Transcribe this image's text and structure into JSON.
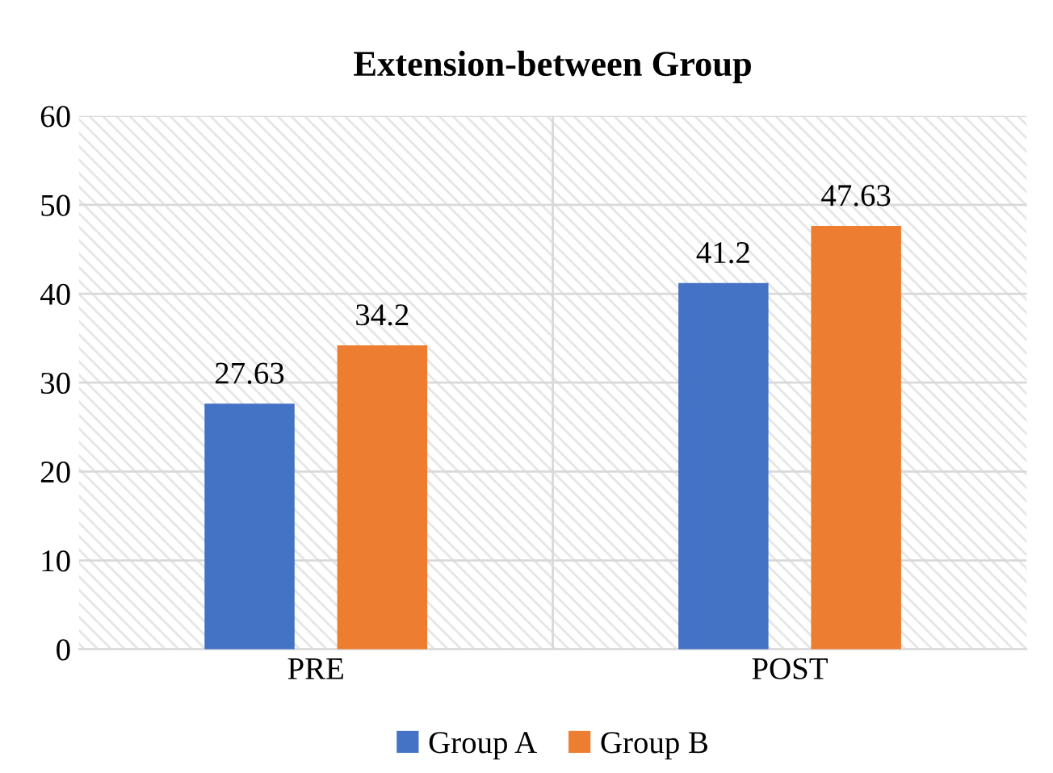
{
  "chart_data": {
    "type": "bar",
    "title": "Extension-between Group",
    "categories": [
      "PRE",
      "POST"
    ],
    "series": [
      {
        "name": "Group A",
        "color": "#4472c4",
        "values": [
          27.63,
          41.2
        ]
      },
      {
        "name": "Group B",
        "color": "#ed7d31",
        "values": [
          34.2,
          47.63
        ]
      }
    ],
    "ylim": [
      0,
      60
    ],
    "yticks": [
      0,
      10,
      20,
      30,
      40,
      50,
      60
    ],
    "grid": true,
    "legend": "bottom",
    "data_labels": true
  }
}
